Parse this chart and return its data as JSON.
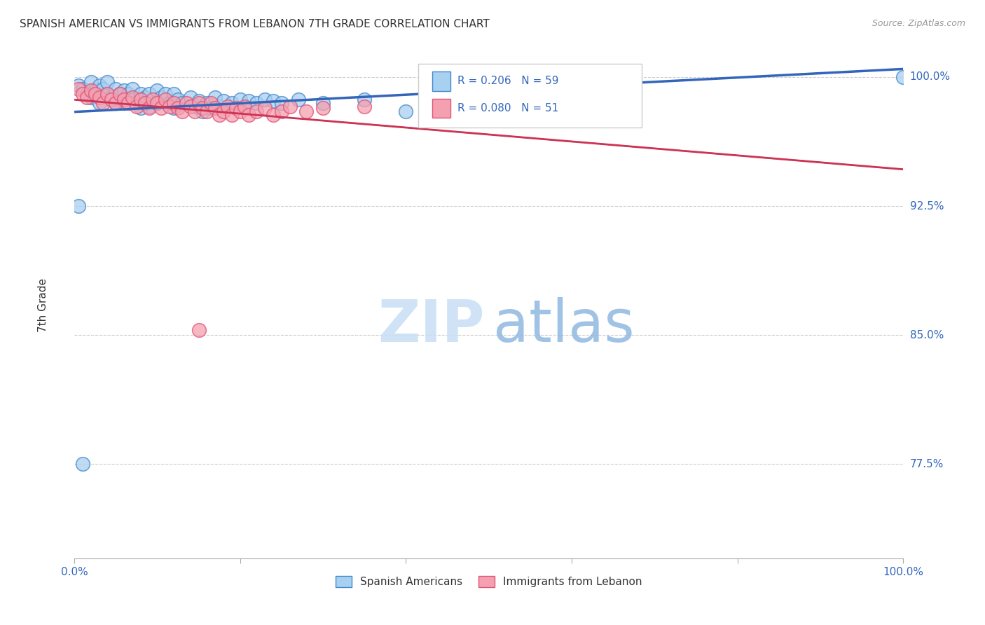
{
  "title": "SPANISH AMERICAN VS IMMIGRANTS FROM LEBANON 7TH GRADE CORRELATION CHART",
  "source": "Source: ZipAtlas.com",
  "ylabel": "7th Grade",
  "xlim": [
    0.0,
    1.0
  ],
  "ylim": [
    0.72,
    1.015
  ],
  "ytick_labels": [
    "77.5%",
    "85.0%",
    "92.5%",
    "100.0%"
  ],
  "ytick_values": [
    0.775,
    0.85,
    0.925,
    1.0
  ],
  "blue_R": 0.206,
  "blue_N": 59,
  "pink_R": 0.08,
  "pink_N": 51,
  "blue_color": "#a8d0f0",
  "pink_color": "#f5a0b0",
  "blue_edge_color": "#4488cc",
  "pink_edge_color": "#dd5577",
  "blue_line_color": "#3366bb",
  "pink_line_color": "#cc3355",
  "blue_scatter_x": [
    0.005,
    0.01,
    0.015,
    0.02,
    0.02,
    0.025,
    0.03,
    0.03,
    0.035,
    0.04,
    0.04,
    0.045,
    0.05,
    0.05,
    0.055,
    0.06,
    0.06,
    0.065,
    0.07,
    0.07,
    0.075,
    0.08,
    0.08,
    0.085,
    0.09,
    0.09,
    0.1,
    0.1,
    0.105,
    0.11,
    0.115,
    0.12,
    0.12,
    0.125,
    0.13,
    0.14,
    0.145,
    0.15,
    0.155,
    0.16,
    0.165,
    0.17,
    0.175,
    0.18,
    0.19,
    0.2,
    0.21,
    0.22,
    0.23,
    0.24,
    0.25,
    0.27,
    0.3,
    0.35,
    0.4,
    0.55,
    1.0,
    0.005,
    0.01
  ],
  "blue_scatter_y": [
    0.995,
    0.993,
    0.99,
    0.988,
    0.997,
    0.992,
    0.995,
    0.985,
    0.993,
    0.99,
    0.997,
    0.988,
    0.993,
    0.985,
    0.99,
    0.992,
    0.985,
    0.99,
    0.993,
    0.987,
    0.985,
    0.99,
    0.982,
    0.988,
    0.99,
    0.983,
    0.992,
    0.985,
    0.988,
    0.99,
    0.985,
    0.99,
    0.982,
    0.987,
    0.985,
    0.988,
    0.983,
    0.986,
    0.98,
    0.985,
    0.982,
    0.988,
    0.983,
    0.986,
    0.985,
    0.987,
    0.986,
    0.985,
    0.987,
    0.986,
    0.985,
    0.987,
    0.985,
    0.987,
    0.98,
    0.985,
    1.0,
    0.925,
    0.775
  ],
  "pink_scatter_x": [
    0.005,
    0.01,
    0.015,
    0.02,
    0.025,
    0.03,
    0.035,
    0.04,
    0.045,
    0.05,
    0.055,
    0.06,
    0.065,
    0.07,
    0.075,
    0.08,
    0.085,
    0.09,
    0.095,
    0.1,
    0.105,
    0.11,
    0.115,
    0.12,
    0.125,
    0.13,
    0.135,
    0.14,
    0.145,
    0.15,
    0.155,
    0.16,
    0.165,
    0.17,
    0.175,
    0.18,
    0.185,
    0.19,
    0.195,
    0.2,
    0.205,
    0.21,
    0.22,
    0.23,
    0.24,
    0.25,
    0.26,
    0.28,
    0.3,
    0.35,
    0.15
  ],
  "pink_scatter_y": [
    0.993,
    0.99,
    0.988,
    0.992,
    0.99,
    0.988,
    0.985,
    0.99,
    0.987,
    0.985,
    0.99,
    0.987,
    0.985,
    0.988,
    0.983,
    0.987,
    0.985,
    0.982,
    0.987,
    0.985,
    0.982,
    0.987,
    0.983,
    0.985,
    0.982,
    0.98,
    0.985,
    0.983,
    0.98,
    0.985,
    0.982,
    0.98,
    0.985,
    0.982,
    0.978,
    0.98,
    0.983,
    0.978,
    0.982,
    0.98,
    0.983,
    0.978,
    0.98,
    0.982,
    0.978,
    0.98,
    0.983,
    0.98,
    0.982,
    0.983,
    0.853
  ],
  "watermark_zip_color": "#c8dff5",
  "watermark_atlas_color": "#90b8e0"
}
